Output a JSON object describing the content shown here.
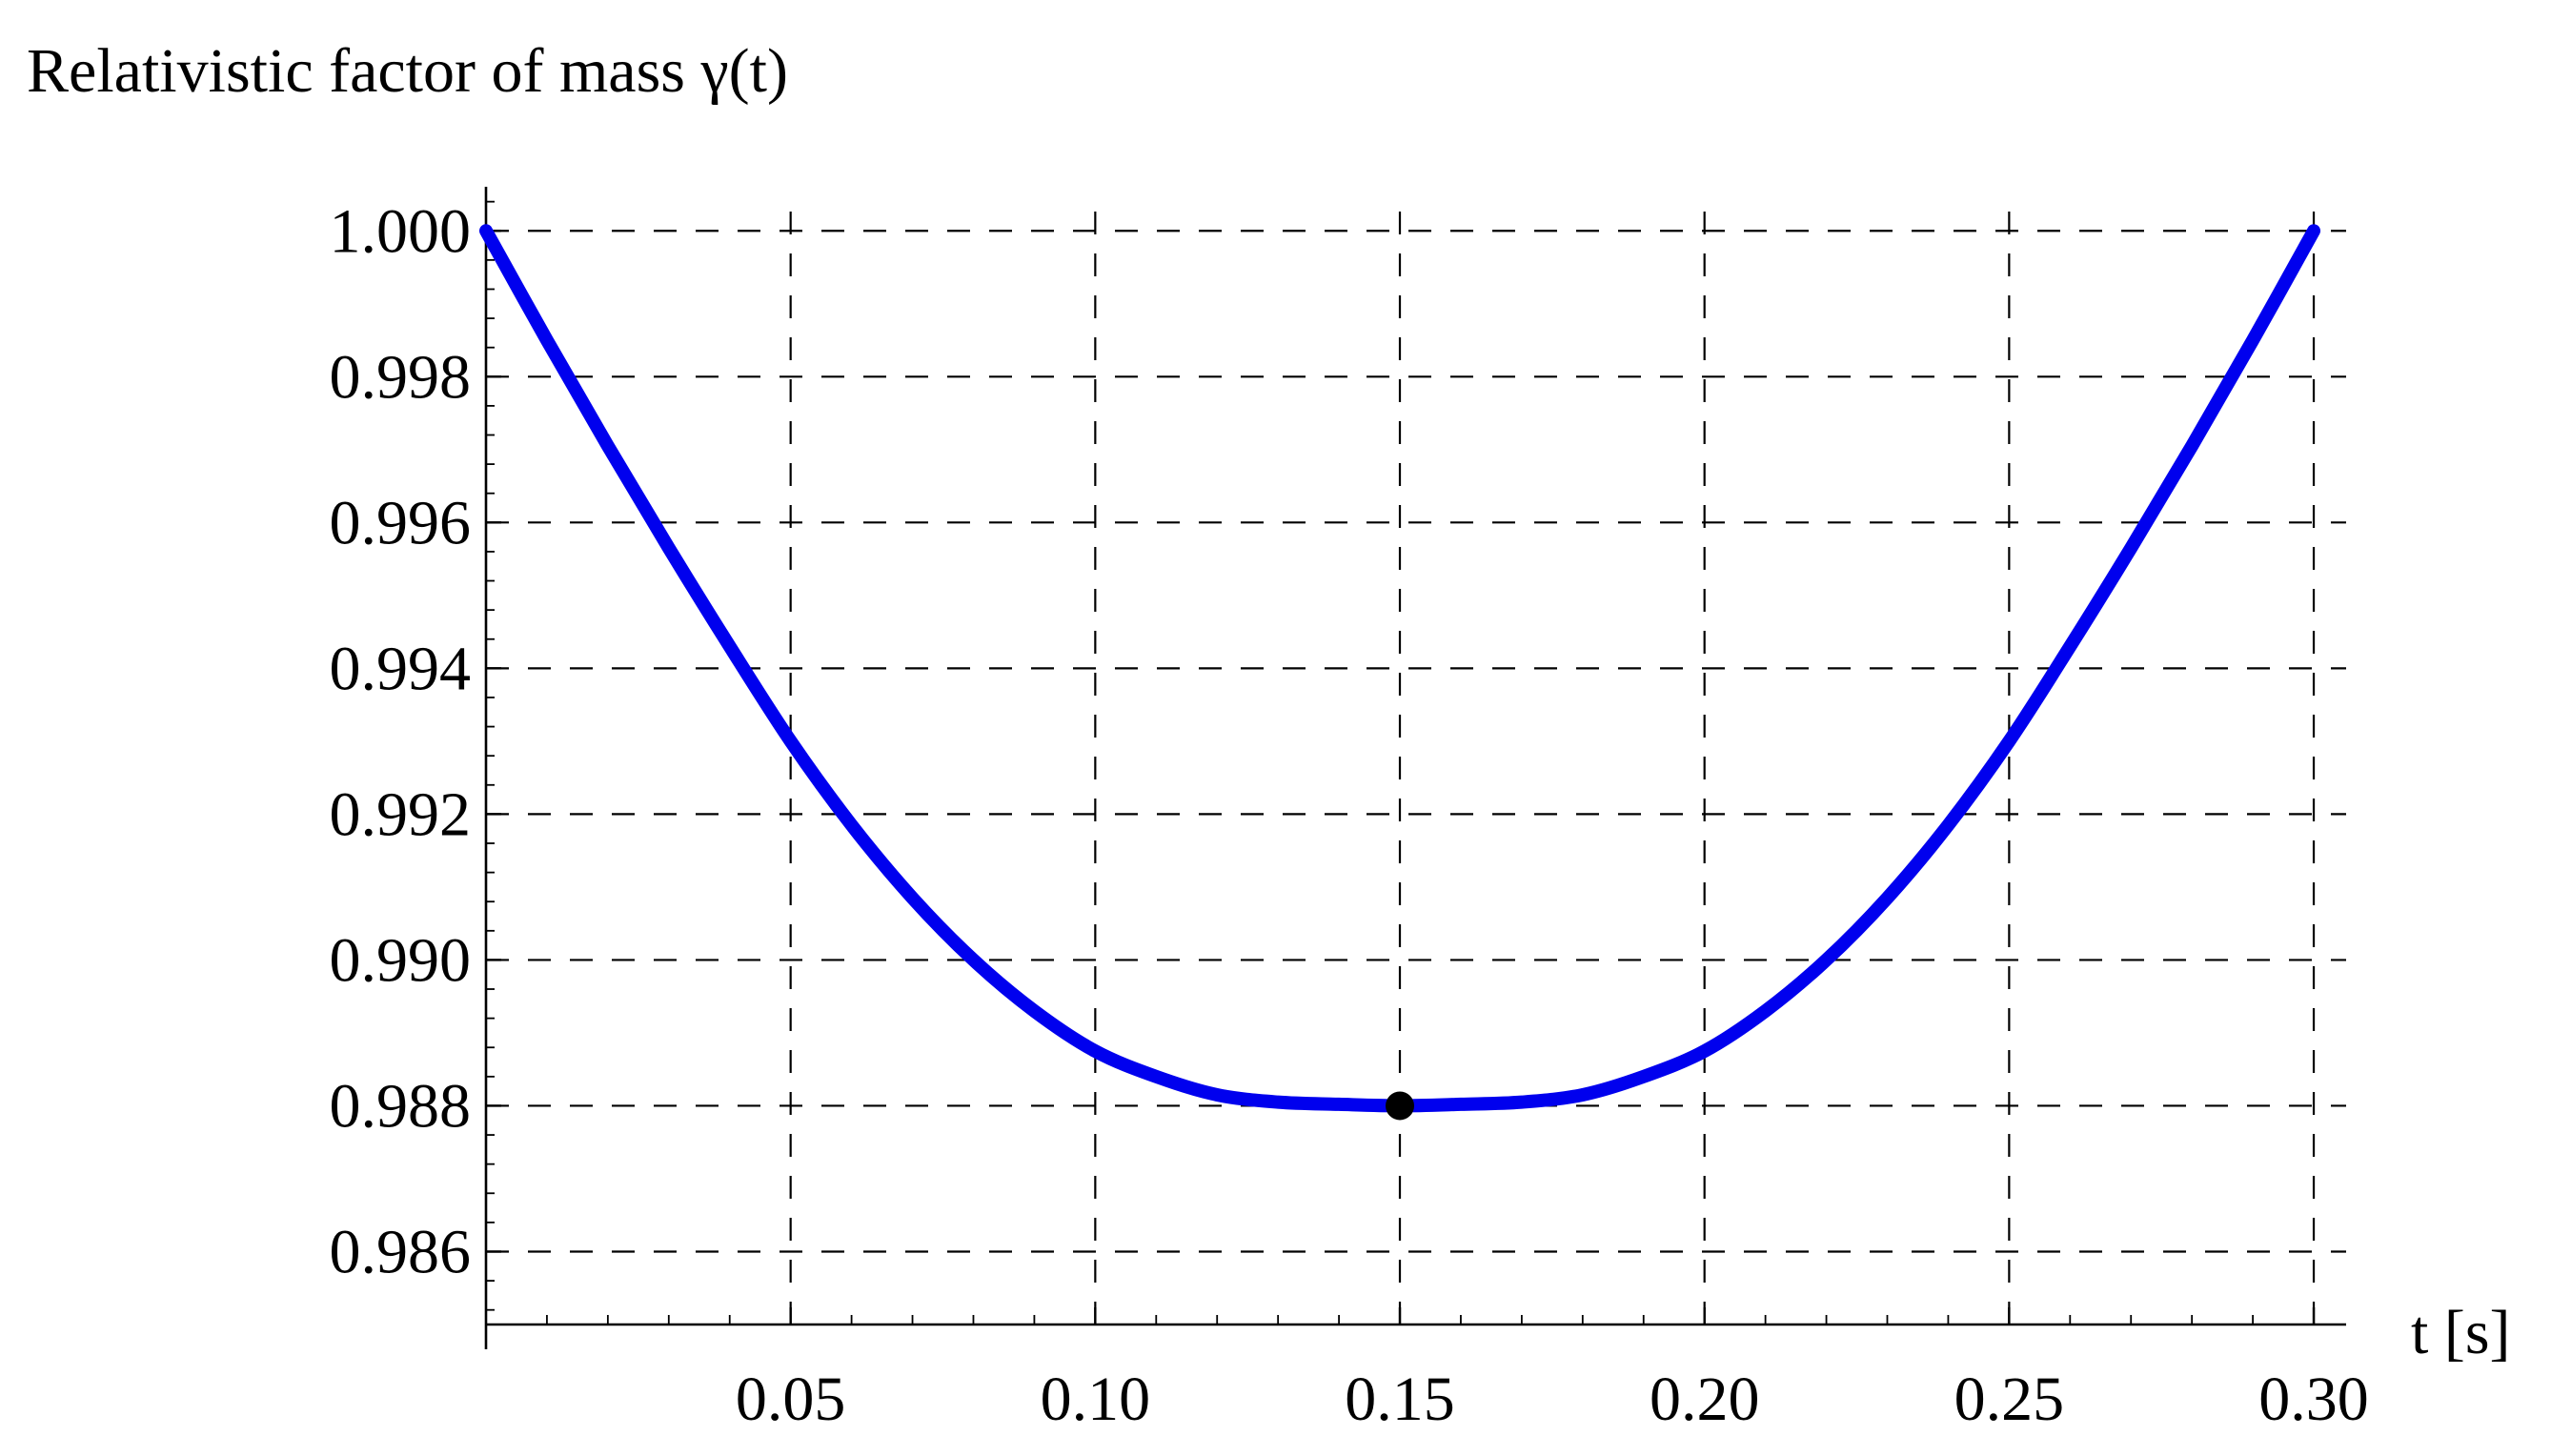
{
  "chart_data": {
    "type": "line",
    "title": "Relativistic factor of mass γ(t)",
    "xlabel": "t [s]",
    "ylabel": "",
    "xlim": [
      0.0,
      0.305
    ],
    "ylim": [
      0.985,
      1.0005
    ],
    "x_ticks": [
      {
        "value": 0.05,
        "label": "0.05"
      },
      {
        "value": 0.1,
        "label": "0.10"
      },
      {
        "value": 0.15,
        "label": "0.15"
      },
      {
        "value": 0.2,
        "label": "0.20"
      },
      {
        "value": 0.25,
        "label": "0.25"
      },
      {
        "value": 0.3,
        "label": "0.30"
      }
    ],
    "y_ticks": [
      {
        "value": 0.986,
        "label": "0.986"
      },
      {
        "value": 0.988,
        "label": "0.988"
      },
      {
        "value": 0.99,
        "label": "0.990"
      },
      {
        "value": 0.992,
        "label": "0.992"
      },
      {
        "value": 0.994,
        "label": "0.994"
      },
      {
        "value": 0.996,
        "label": "0.996"
      },
      {
        "value": 0.998,
        "label": "0.998"
      },
      {
        "value": 1.0,
        "label": "1.000"
      }
    ],
    "grid": true,
    "series": [
      {
        "color": "#0000ee",
        "x": [
          0.0,
          0.01,
          0.02,
          0.03,
          0.04,
          0.05,
          0.06,
          0.07,
          0.08,
          0.09,
          0.1,
          0.11,
          0.12,
          0.13,
          0.14,
          0.15,
          0.16,
          0.17,
          0.18,
          0.19,
          0.2,
          0.21,
          0.22,
          0.23,
          0.24,
          0.25,
          0.26,
          0.27,
          0.28,
          0.29,
          0.3
        ],
        "y": [
          1.0,
          0.9985,
          0.99705,
          0.99565,
          0.9943,
          0.993,
          0.99185,
          0.99085,
          0.99,
          0.9893,
          0.98875,
          0.9884,
          0.98815,
          0.98805,
          0.98802,
          0.988,
          0.98802,
          0.98805,
          0.98815,
          0.9884,
          0.98875,
          0.9893,
          0.99,
          0.99085,
          0.99185,
          0.993,
          0.9943,
          0.99565,
          0.99705,
          0.9985,
          1.0
        ]
      }
    ],
    "points": [
      {
        "x": 0.15,
        "y": 0.988,
        "color": "#000000"
      }
    ]
  }
}
